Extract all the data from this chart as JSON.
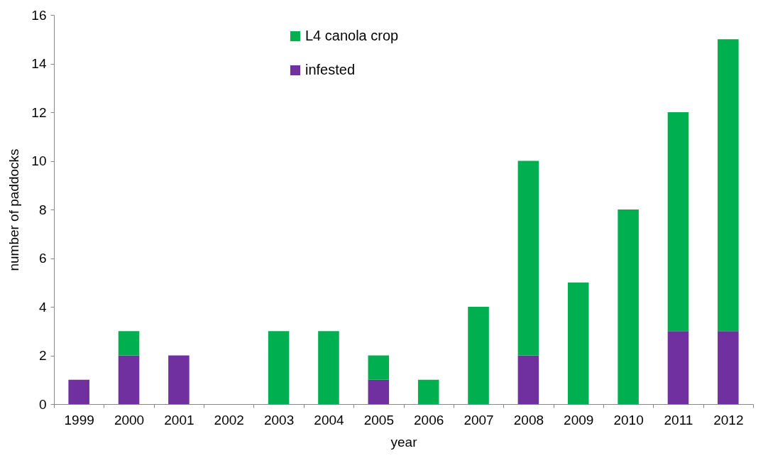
{
  "chart_data": {
    "type": "bar",
    "stacked": true,
    "xlabel": "year",
    "ylabel": "number of paddocks",
    "categories": [
      "1999",
      "2000",
      "2001",
      "2002",
      "2003",
      "2004",
      "2005",
      "2006",
      "2007",
      "2008",
      "2009",
      "2010",
      "2011",
      "2012"
    ],
    "series": [
      {
        "name": "infested",
        "color": "#7030a0",
        "values": [
          1,
          2,
          2,
          0,
          0,
          0,
          1,
          0,
          0,
          2,
          0,
          0,
          3,
          3
        ]
      },
      {
        "name": "L4 canola crop",
        "color": "#00b050",
        "values": [
          0,
          1,
          0,
          0,
          3,
          3,
          1,
          1,
          4,
          8,
          5,
          8,
          9,
          12
        ]
      }
    ],
    "ylim": [
      0,
      16
    ],
    "yticks": [
      0,
      2,
      4,
      6,
      8,
      10,
      12,
      14,
      16
    ],
    "legend": "top"
  }
}
